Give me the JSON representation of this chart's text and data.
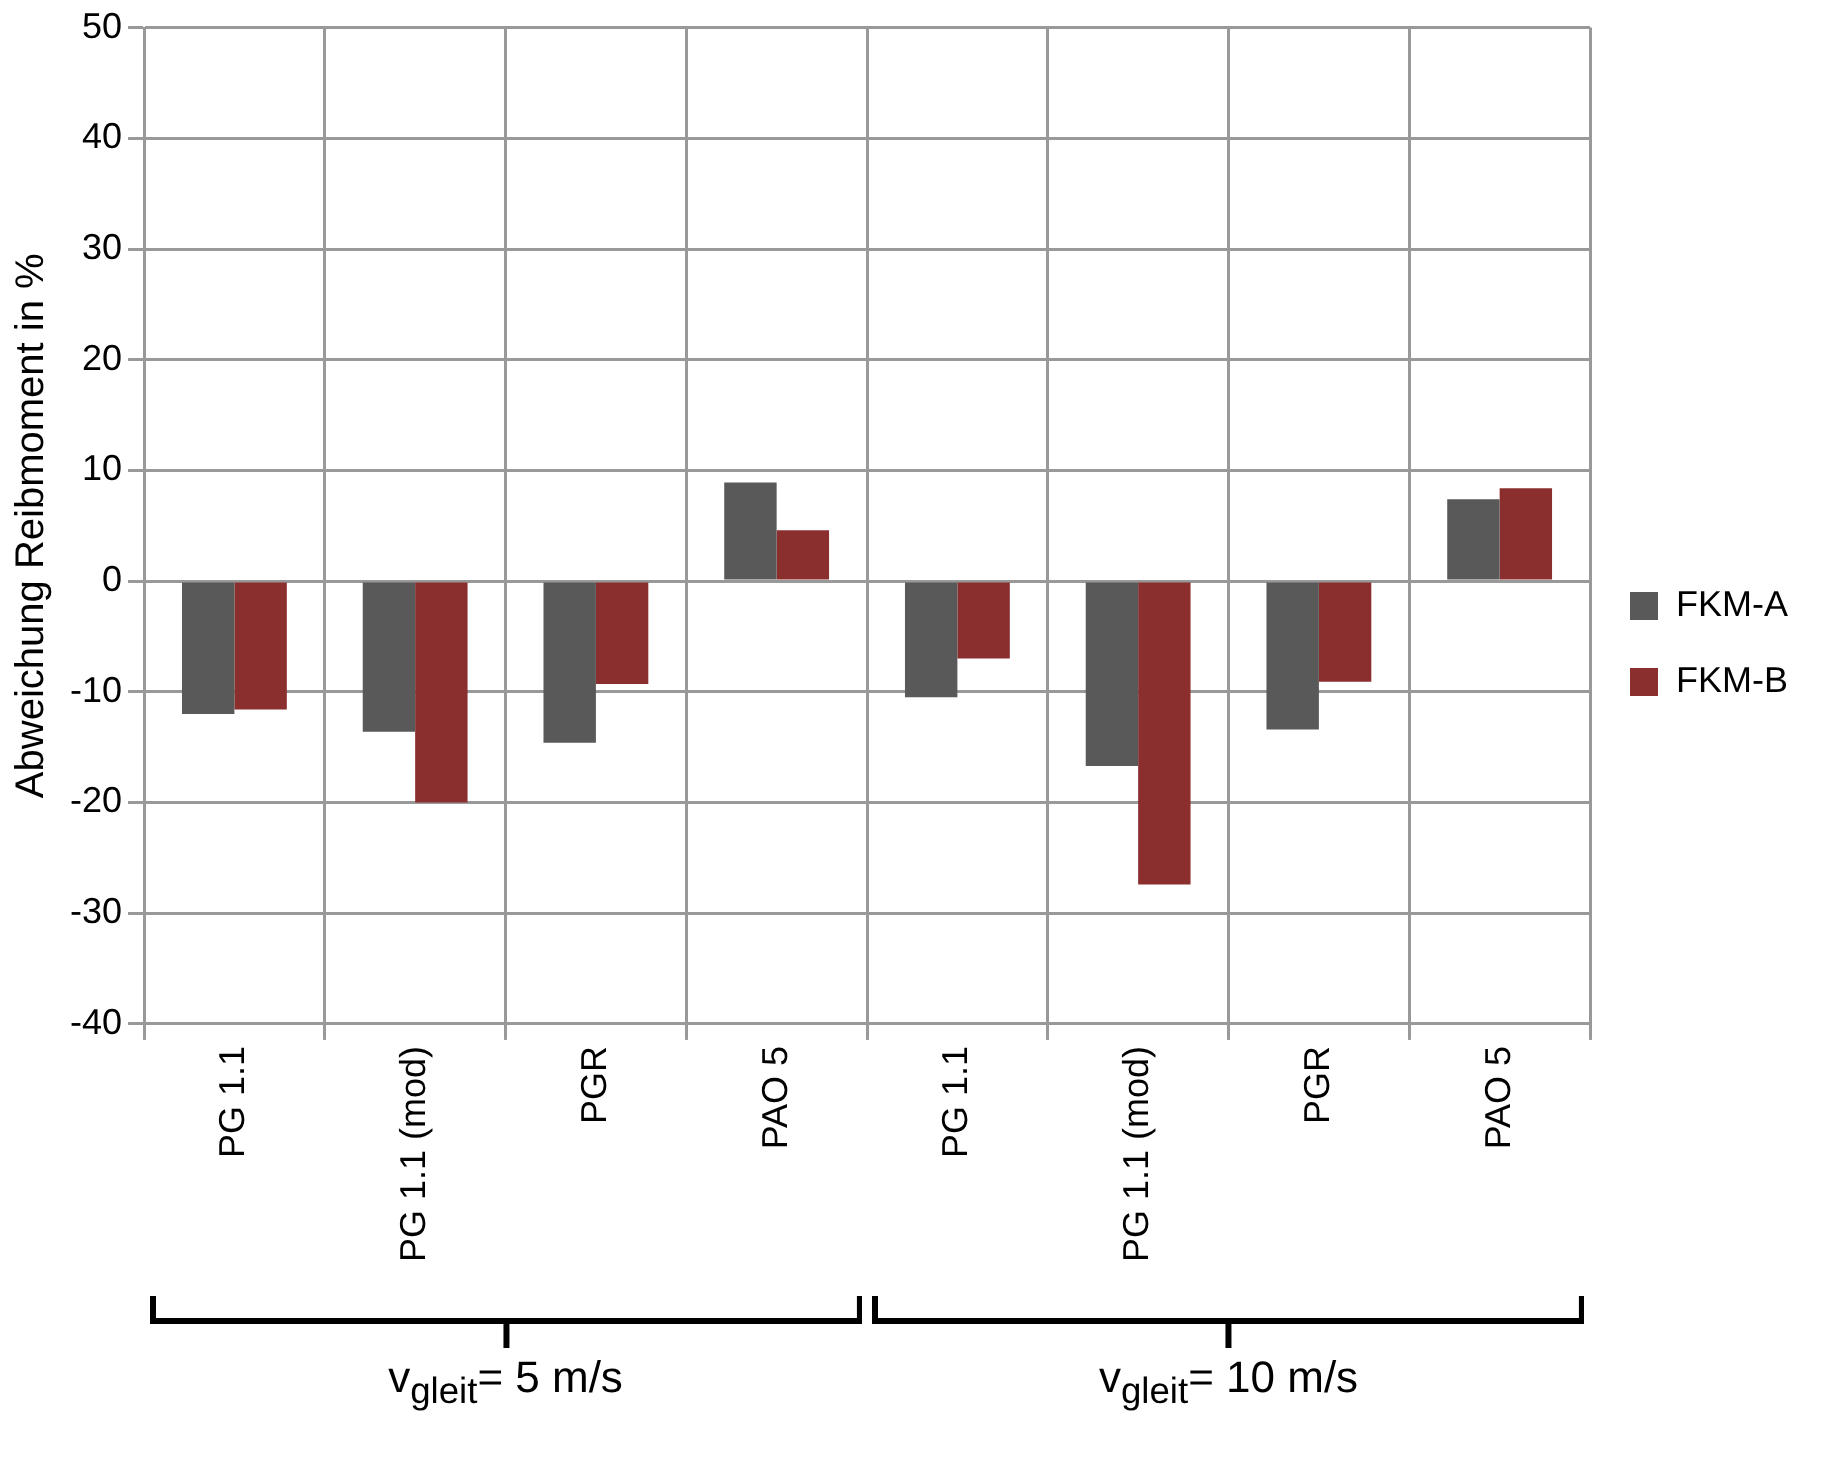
{
  "chart_data": {
    "type": "bar",
    "ylabel": "Abweichung Reibmoment in %",
    "categories": [
      "PG 1.1",
      "PG 1.1 (mod)",
      "PGR",
      "PAO 5",
      "PG 1.1",
      "PG 1.1 (mod)",
      "PGR",
      "PAO 5"
    ],
    "series": [
      {
        "name": "FKM-A",
        "color": "#595959",
        "values": [
          -12.0,
          -13.6,
          -14.6,
          8.9,
          -10.5,
          -16.7,
          -13.4,
          7.4
        ]
      },
      {
        "name": "FKM-B",
        "color": "#8b2e2e",
        "values": [
          -11.6,
          -20.0,
          -9.3,
          4.6,
          -7.0,
          -27.4,
          -9.1,
          8.4
        ]
      }
    ],
    "ylim": [
      -40,
      50
    ],
    "yticks": [
      -40,
      -30,
      -20,
      -10,
      0,
      10,
      20,
      30,
      40,
      50
    ],
    "grid": true,
    "legend": "right",
    "annotations": [
      "v$_{gleit}$= 5 m/s",
      "v$_{gleit}$= 10 m/s"
    ]
  }
}
